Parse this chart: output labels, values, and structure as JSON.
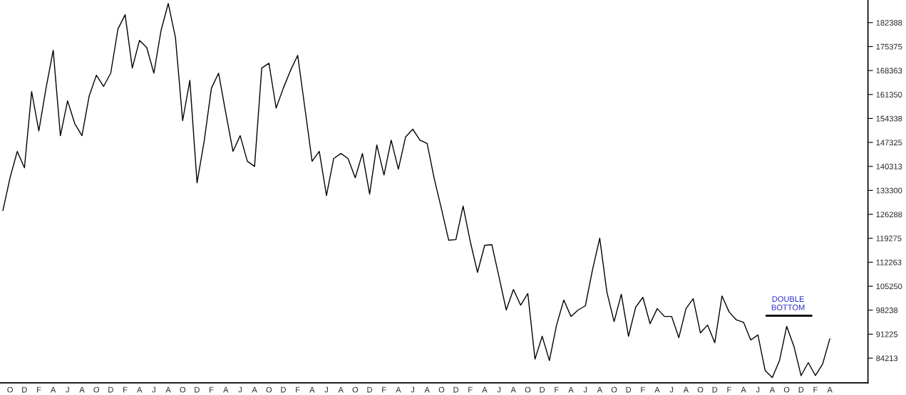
{
  "chart_data": {
    "type": "line",
    "categories": [
      null,
      "O",
      null,
      "D",
      null,
      "F",
      null,
      "A",
      null,
      "J",
      null,
      "A",
      null,
      "O",
      null,
      "D",
      null,
      "F",
      null,
      "A",
      null,
      "J",
      null,
      "A",
      null,
      "O",
      null,
      "D",
      null,
      "F",
      null,
      "A",
      null,
      "J",
      null,
      "A",
      null,
      "O",
      null,
      "D",
      null,
      "F",
      null,
      "A",
      null,
      "J",
      null,
      "A",
      null,
      "O",
      null,
      "D",
      null,
      "F",
      null,
      "A",
      null,
      "J",
      null,
      "A",
      null,
      "O",
      null,
      "D",
      null,
      "F",
      null,
      "A",
      null,
      "J",
      null,
      "A",
      null,
      "O",
      null,
      "D",
      null,
      "F",
      null,
      "A",
      null,
      "J",
      null,
      "A",
      null,
      "O",
      null,
      "D",
      null,
      "F",
      null,
      "A",
      null,
      "J",
      null,
      "A",
      null,
      "O",
      null,
      "D",
      null,
      "F",
      null,
      "A",
      null,
      "J",
      null,
      "A",
      null,
      "O",
      null,
      "D",
      null,
      "F",
      null,
      "A"
    ],
    "ylim": [
      77000,
      189000
    ],
    "yticks": [
      84213,
      91225,
      98238,
      105250,
      112263,
      119275,
      126288,
      133300,
      140313,
      147325,
      154338,
      161350,
      168363,
      175375,
      182388
    ],
    "grid": false,
    "annotations": [
      "DOUBLE\nBOTTOM"
    ],
    "series": [
      {
        "color": "#000000",
        "values": [
          127400,
          137000,
          144700,
          139900,
          162200,
          150700,
          163200,
          174300,
          149300,
          159500,
          152800,
          149300,
          160900,
          167000,
          163700,
          167600,
          180500,
          184700,
          169100,
          177200,
          175100,
          167600,
          180100,
          188000,
          178000,
          153700,
          165500,
          135500,
          147800,
          163200,
          167600,
          155900,
          144700,
          149300,
          141800,
          140300,
          169100,
          170500,
          157400,
          163200,
          168400,
          172800,
          157400,
          141800,
          144700,
          131800,
          142600,
          144100,
          142600,
          137000,
          144100,
          132200,
          146600,
          137800,
          148000,
          139500,
          148900,
          151200,
          148000,
          147000,
          136600,
          127800,
          118700,
          118900,
          128700,
          118300,
          109300,
          117200,
          117400,
          107900,
          98300,
          104300,
          99700,
          103100,
          83900,
          90600,
          83500,
          93900,
          101200,
          96400,
          98300,
          99500,
          110100,
          119300,
          103500,
          94900,
          102900,
          90600,
          99100,
          102000,
          94300,
          98700,
          96400,
          96400,
          90200,
          98700,
          101600,
          91600,
          93900,
          88700,
          102400,
          97700,
          95400,
          94700,
          89500,
          91000,
          80600,
          78500,
          83500,
          93500,
          87700,
          79100,
          82900,
          79100,
          82500,
          89900
        ]
      }
    ]
  }
}
